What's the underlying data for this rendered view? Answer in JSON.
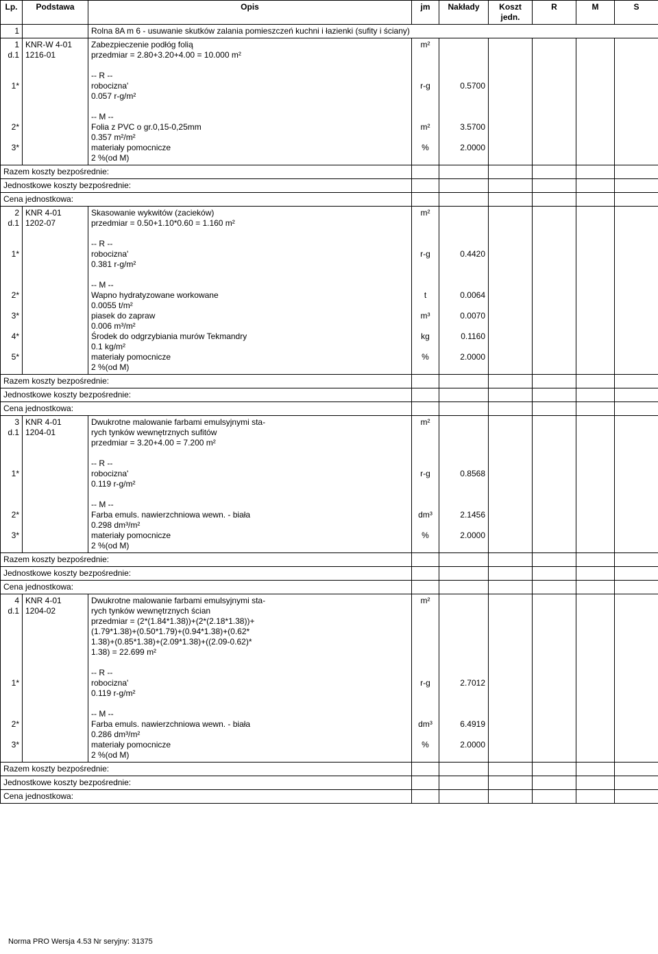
{
  "header": {
    "lp": "Lp.",
    "podstawa": "Podstawa",
    "opis": "Opis",
    "jm": "jm",
    "naklady": "Nakłady",
    "koszt": "Koszt jedn.",
    "r": "R",
    "m": "M",
    "s": "S"
  },
  "rows": [
    {
      "lp": "1",
      "pod": "",
      "opis": "Rolna 8A m 6 - usuwanie skutków zalania pomieszczeń kuchni i łazienki (sufity i ściany)",
      "jm": "",
      "nak": "",
      "colspan_opis": 7
    },
    {
      "lp": "1",
      "pod": "KNR-W 4-01",
      "opis": "Zabezpieczenie podłóg folią",
      "jm": "m²",
      "nak": ""
    },
    {
      "lp": "d.1",
      "pod": "1216-01",
      "opis": "przedmiar  = 2.80+3.20+4.00 = 10.000 m²",
      "jm": "",
      "nak": ""
    },
    {
      "blank": true
    },
    {
      "lp": "",
      "pod": "",
      "opis": "-- R --",
      "jm": "",
      "nak": ""
    },
    {
      "lp": "1*",
      "pod": "",
      "opis": "robocizna'",
      "jm": "r-g",
      "nak": "0.5700"
    },
    {
      "lp": "",
      "pod": "",
      "opis": "0.057 r-g/m²",
      "jm": "",
      "nak": ""
    },
    {
      "blank": true
    },
    {
      "lp": "",
      "pod": "",
      "opis": "-- M --",
      "jm": "",
      "nak": ""
    },
    {
      "lp": "2*",
      "pod": "",
      "opis": "Folia z PVC o gr.0,15-0,25mm",
      "jm": "m²",
      "nak": "3.5700"
    },
    {
      "lp": "",
      "pod": "",
      "opis": "0.357 m²/m²",
      "jm": "",
      "nak": ""
    },
    {
      "lp": "3*",
      "pod": "",
      "opis": "materiały pomocnicze",
      "jm": "%",
      "nak": "2.0000"
    },
    {
      "lp": "",
      "pod": "",
      "opis": "2 %(od M)",
      "jm": "",
      "nak": ""
    },
    {
      "full": "Razem koszty bezpośrednie:"
    },
    {
      "full": "Jednostkowe koszty bezpośrednie:"
    },
    {
      "full": "Cena jednostkowa:"
    },
    {
      "lp": "2",
      "pod": "KNR 4-01",
      "opis": "Skasowanie wykwitów (zacieków)",
      "jm": "m²",
      "nak": ""
    },
    {
      "lp": "d.1",
      "pod": "1202-07",
      "opis": "przedmiar  = 0.50+1.10*0.60 = 1.160 m²",
      "jm": "",
      "nak": ""
    },
    {
      "blank": true
    },
    {
      "lp": "",
      "pod": "",
      "opis": "-- R --",
      "jm": "",
      "nak": ""
    },
    {
      "lp": "1*",
      "pod": "",
      "opis": "robocizna'",
      "jm": "r-g",
      "nak": "0.4420"
    },
    {
      "lp": "",
      "pod": "",
      "opis": "0.381 r-g/m²",
      "jm": "",
      "nak": ""
    },
    {
      "blank": true
    },
    {
      "lp": "",
      "pod": "",
      "opis": "-- M --",
      "jm": "",
      "nak": ""
    },
    {
      "lp": "2*",
      "pod": "",
      "opis": "Wapno hydratyzowane workowane",
      "jm": "t",
      "nak": "0.0064"
    },
    {
      "lp": "",
      "pod": "",
      "opis": "0.0055 t/m²",
      "jm": "",
      "nak": ""
    },
    {
      "lp": "3*",
      "pod": "",
      "opis": "piasek do zapraw",
      "jm": "m³",
      "nak": "0.0070"
    },
    {
      "lp": "",
      "pod": "",
      "opis": "0.006 m³/m²",
      "jm": "",
      "nak": ""
    },
    {
      "lp": "4*",
      "pod": "",
      "opis": "Środek do odgrzybiania murów Tekmandry",
      "jm": "kg",
      "nak": "0.1160"
    },
    {
      "lp": "",
      "pod": "",
      "opis": "0.1 kg/m²",
      "jm": "",
      "nak": ""
    },
    {
      "lp": "5*",
      "pod": "",
      "opis": "materiały pomocnicze",
      "jm": "%",
      "nak": "2.0000"
    },
    {
      "lp": "",
      "pod": "",
      "opis": "2 %(od M)",
      "jm": "",
      "nak": ""
    },
    {
      "full": "Razem koszty bezpośrednie:"
    },
    {
      "full": "Jednostkowe koszty bezpośrednie:"
    },
    {
      "full": "Cena jednostkowa:"
    },
    {
      "lp": "3",
      "pod": "KNR 4-01",
      "opis": "Dwukrotne malowanie farbami emulsyjnymi sta-",
      "jm": "m²",
      "nak": ""
    },
    {
      "lp": "d.1",
      "pod": "1204-01",
      "opis": "rych tynków wewnętrznych sufitów",
      "jm": "",
      "nak": ""
    },
    {
      "lp": "",
      "pod": "",
      "opis": "przedmiar  = 3.20+4.00 = 7.200 m²",
      "jm": "",
      "nak": ""
    },
    {
      "blank": true
    },
    {
      "lp": "",
      "pod": "",
      "opis": "-- R --",
      "jm": "",
      "nak": ""
    },
    {
      "lp": "1*",
      "pod": "",
      "opis": "robocizna'",
      "jm": "r-g",
      "nak": "0.8568"
    },
    {
      "lp": "",
      "pod": "",
      "opis": "0.119 r-g/m²",
      "jm": "",
      "nak": ""
    },
    {
      "blank": true
    },
    {
      "lp": "",
      "pod": "",
      "opis": "-- M --",
      "jm": "",
      "nak": ""
    },
    {
      "lp": "2*",
      "pod": "",
      "opis": "Farba emuls. nawierzchniowa wewn. - biała",
      "jm": "dm³",
      "nak": "2.1456"
    },
    {
      "lp": "",
      "pod": "",
      "opis": "0.298 dm³/m²",
      "jm": "",
      "nak": ""
    },
    {
      "lp": "3*",
      "pod": "",
      "opis": "materiały pomocnicze",
      "jm": "%",
      "nak": "2.0000"
    },
    {
      "lp": "",
      "pod": "",
      "opis": "2 %(od M)",
      "jm": "",
      "nak": ""
    },
    {
      "full": "Razem koszty bezpośrednie:"
    },
    {
      "full": "Jednostkowe koszty bezpośrednie:"
    },
    {
      "full": "Cena jednostkowa:"
    },
    {
      "lp": "4",
      "pod": "KNR 4-01",
      "opis": "Dwukrotne malowanie farbami emulsyjnymi sta-",
      "jm": "m²",
      "nak": ""
    },
    {
      "lp": "d.1",
      "pod": "1204-02",
      "opis": "rych tynków wewnętrznych ścian",
      "jm": "",
      "nak": ""
    },
    {
      "lp": "",
      "pod": "",
      "opis": "przedmiar  = (2*(1.84*1.38))+(2*(2.18*1.38))+",
      "jm": "",
      "nak": ""
    },
    {
      "lp": "",
      "pod": "",
      "opis": "(1.79*1.38)+(0.50*1.79)+(0.94*1.38)+(0.62*",
      "jm": "",
      "nak": ""
    },
    {
      "lp": "",
      "pod": "",
      "opis": "1.38)+(0.85*1.38)+(2.09*1.38)+((2.09-0.62)*",
      "jm": "",
      "nak": ""
    },
    {
      "lp": "",
      "pod": "",
      "opis": "1.38) = 22.699 m²",
      "jm": "",
      "nak": ""
    },
    {
      "blank": true
    },
    {
      "lp": "",
      "pod": "",
      "opis": "-- R --",
      "jm": "",
      "nak": ""
    },
    {
      "lp": "1*",
      "pod": "",
      "opis": "robocizna'",
      "jm": "r-g",
      "nak": "2.7012"
    },
    {
      "lp": "",
      "pod": "",
      "opis": "0.119 r-g/m²",
      "jm": "",
      "nak": ""
    },
    {
      "blank": true
    },
    {
      "lp": "",
      "pod": "",
      "opis": "-- M --",
      "jm": "",
      "nak": ""
    },
    {
      "lp": "2*",
      "pod": "",
      "opis": "Farba emuls. nawierzchniowa wewn. - biała",
      "jm": "dm³",
      "nak": "6.4919"
    },
    {
      "lp": "",
      "pod": "",
      "opis": "0.286 dm³/m²",
      "jm": "",
      "nak": ""
    },
    {
      "lp": "3*",
      "pod": "",
      "opis": "materiały pomocnicze",
      "jm": "%",
      "nak": "2.0000"
    },
    {
      "lp": "",
      "pod": "",
      "opis": "2 %(od M)",
      "jm": "",
      "nak": ""
    },
    {
      "full": "Razem koszty bezpośrednie:"
    },
    {
      "full": "Jednostkowe koszty bezpośrednie:"
    },
    {
      "full": "Cena jednostkowa:"
    }
  ],
  "footer": "Norma PRO Wersja 4.53 Nr seryjny: 31375"
}
